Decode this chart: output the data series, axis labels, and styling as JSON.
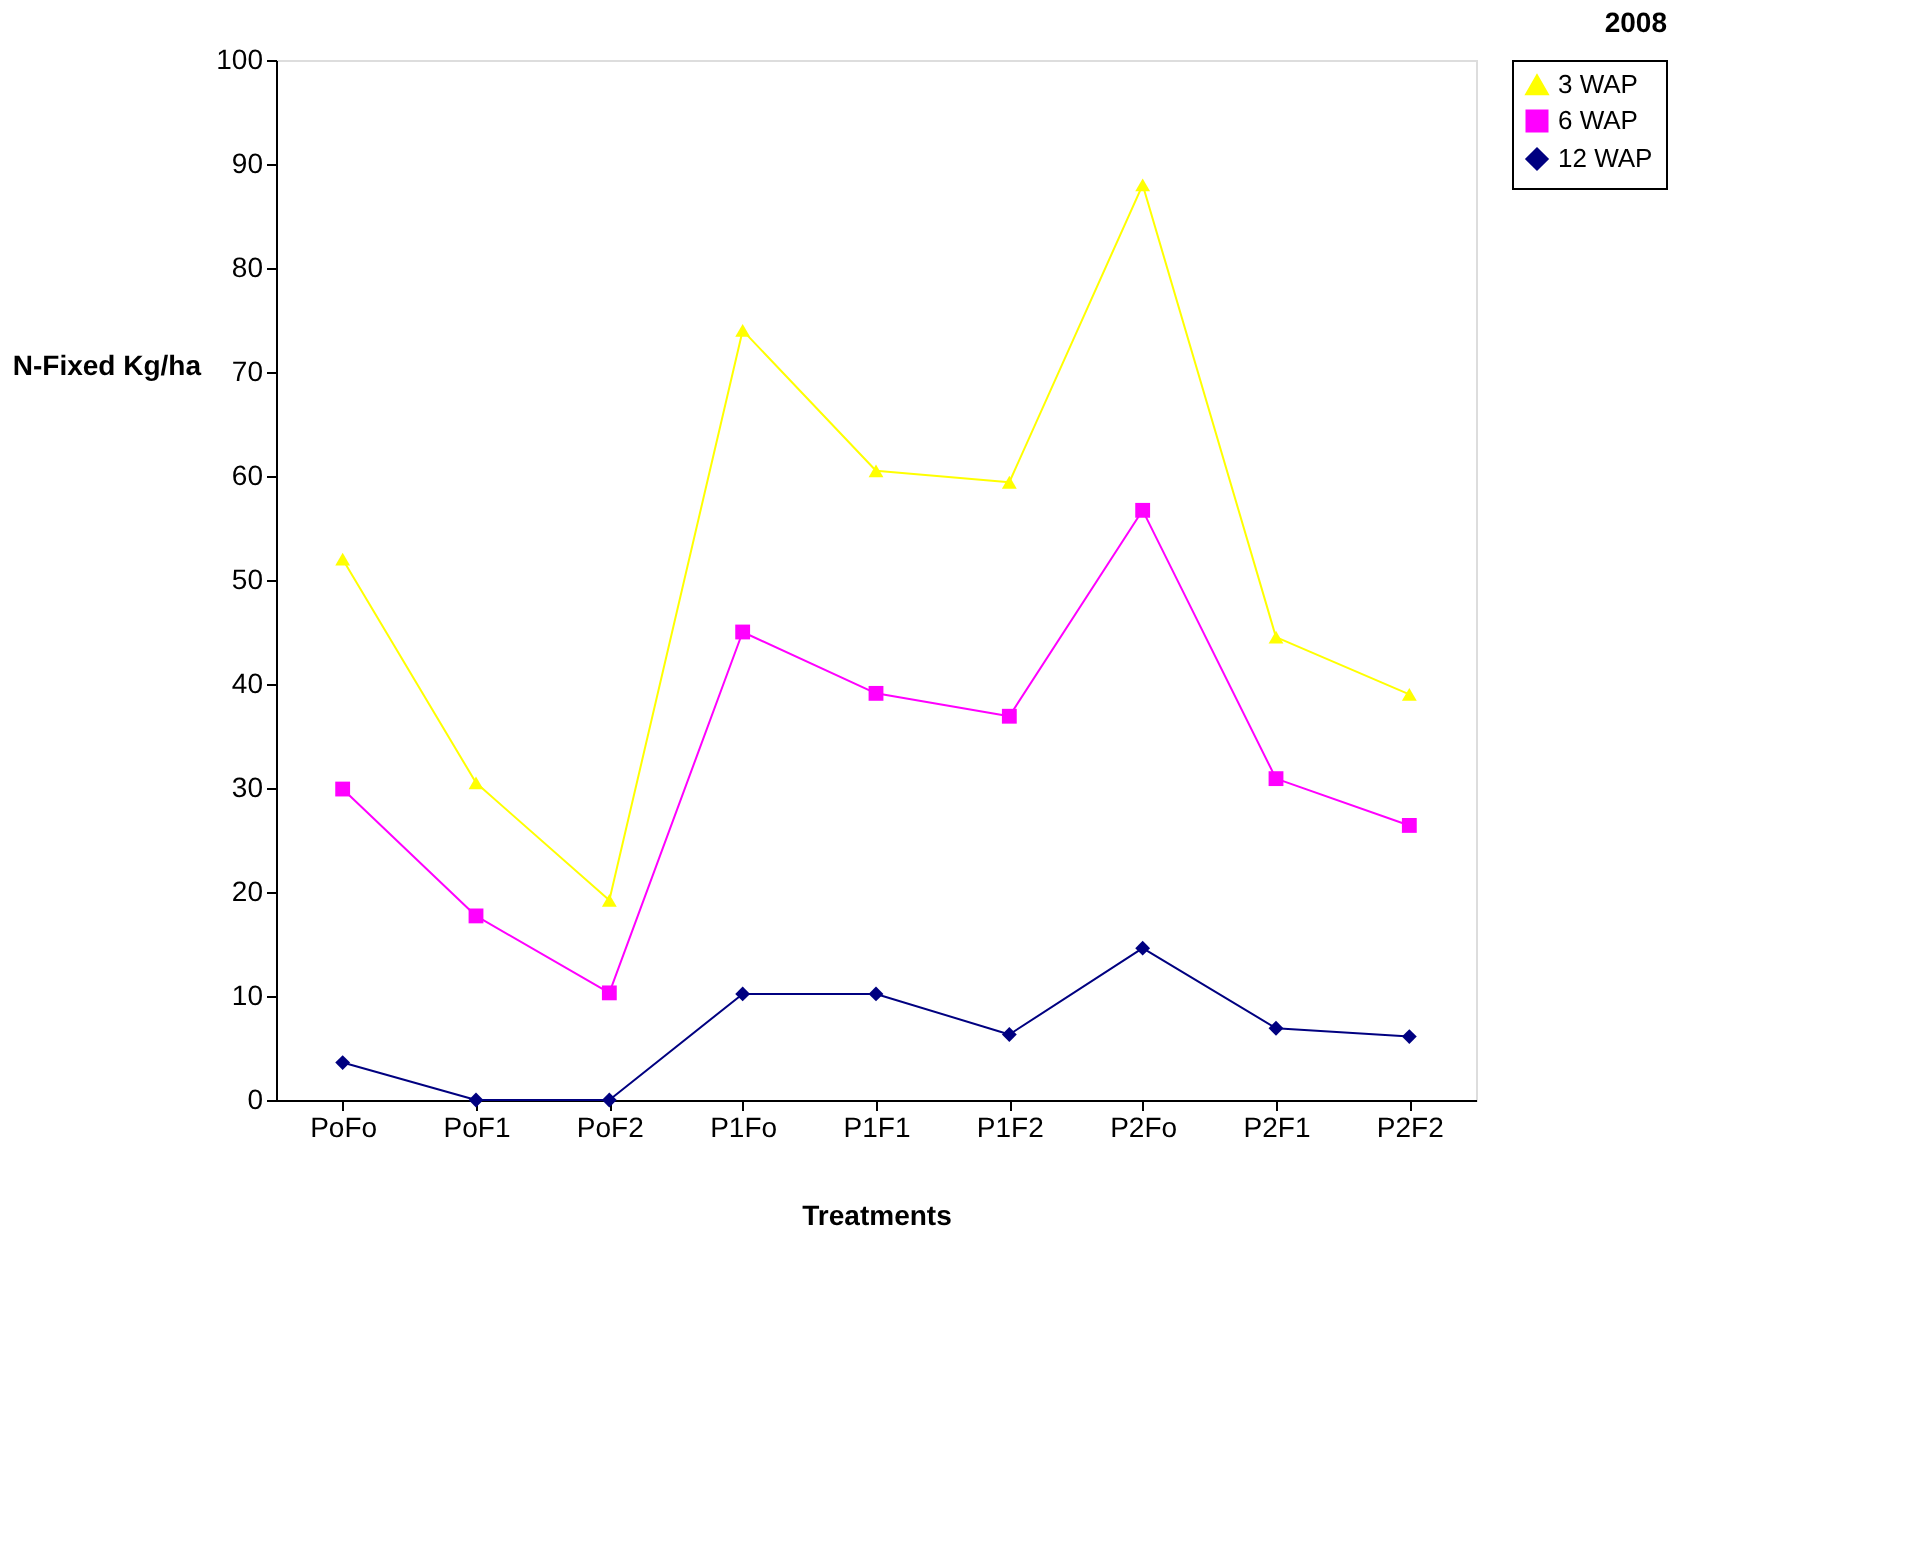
{
  "chart_data": {
    "type": "line",
    "title": "2008",
    "xlabel": "Treatments",
    "ylabel": "N-Fixed Kg/ha",
    "categories": [
      "PoFo",
      "PoF1",
      "PoF2",
      "P1Fo",
      "P1F1",
      "P1F2",
      "P2Fo",
      "P2F1",
      "P2F2"
    ],
    "series": [
      {
        "name": "3 WAP",
        "color": "#ffff00",
        "marker": "triangle",
        "values": [
          52,
          30.5,
          19.2,
          74,
          60.5,
          59.4,
          88,
          44.5,
          39
        ]
      },
      {
        "name": "6 WAP",
        "color": "#ff00ff",
        "marker": "square",
        "values": [
          29.9,
          17.7,
          10.3,
          45,
          39.1,
          36.9,
          56.7,
          30.9,
          26.4
        ]
      },
      {
        "name": "12 WAP",
        "color": "#000080",
        "marker": "diamond",
        "values": [
          3.6,
          0,
          0,
          10.2,
          10.2,
          6.3,
          14.6,
          6.9,
          6.1
        ]
      }
    ],
    "ylim": [
      0,
      100
    ],
    "yticks": [
      0,
      10,
      20,
      30,
      40,
      50,
      60,
      70,
      80,
      90,
      100
    ],
    "grid": false,
    "legend": "right",
    "line_style": "solid"
  }
}
